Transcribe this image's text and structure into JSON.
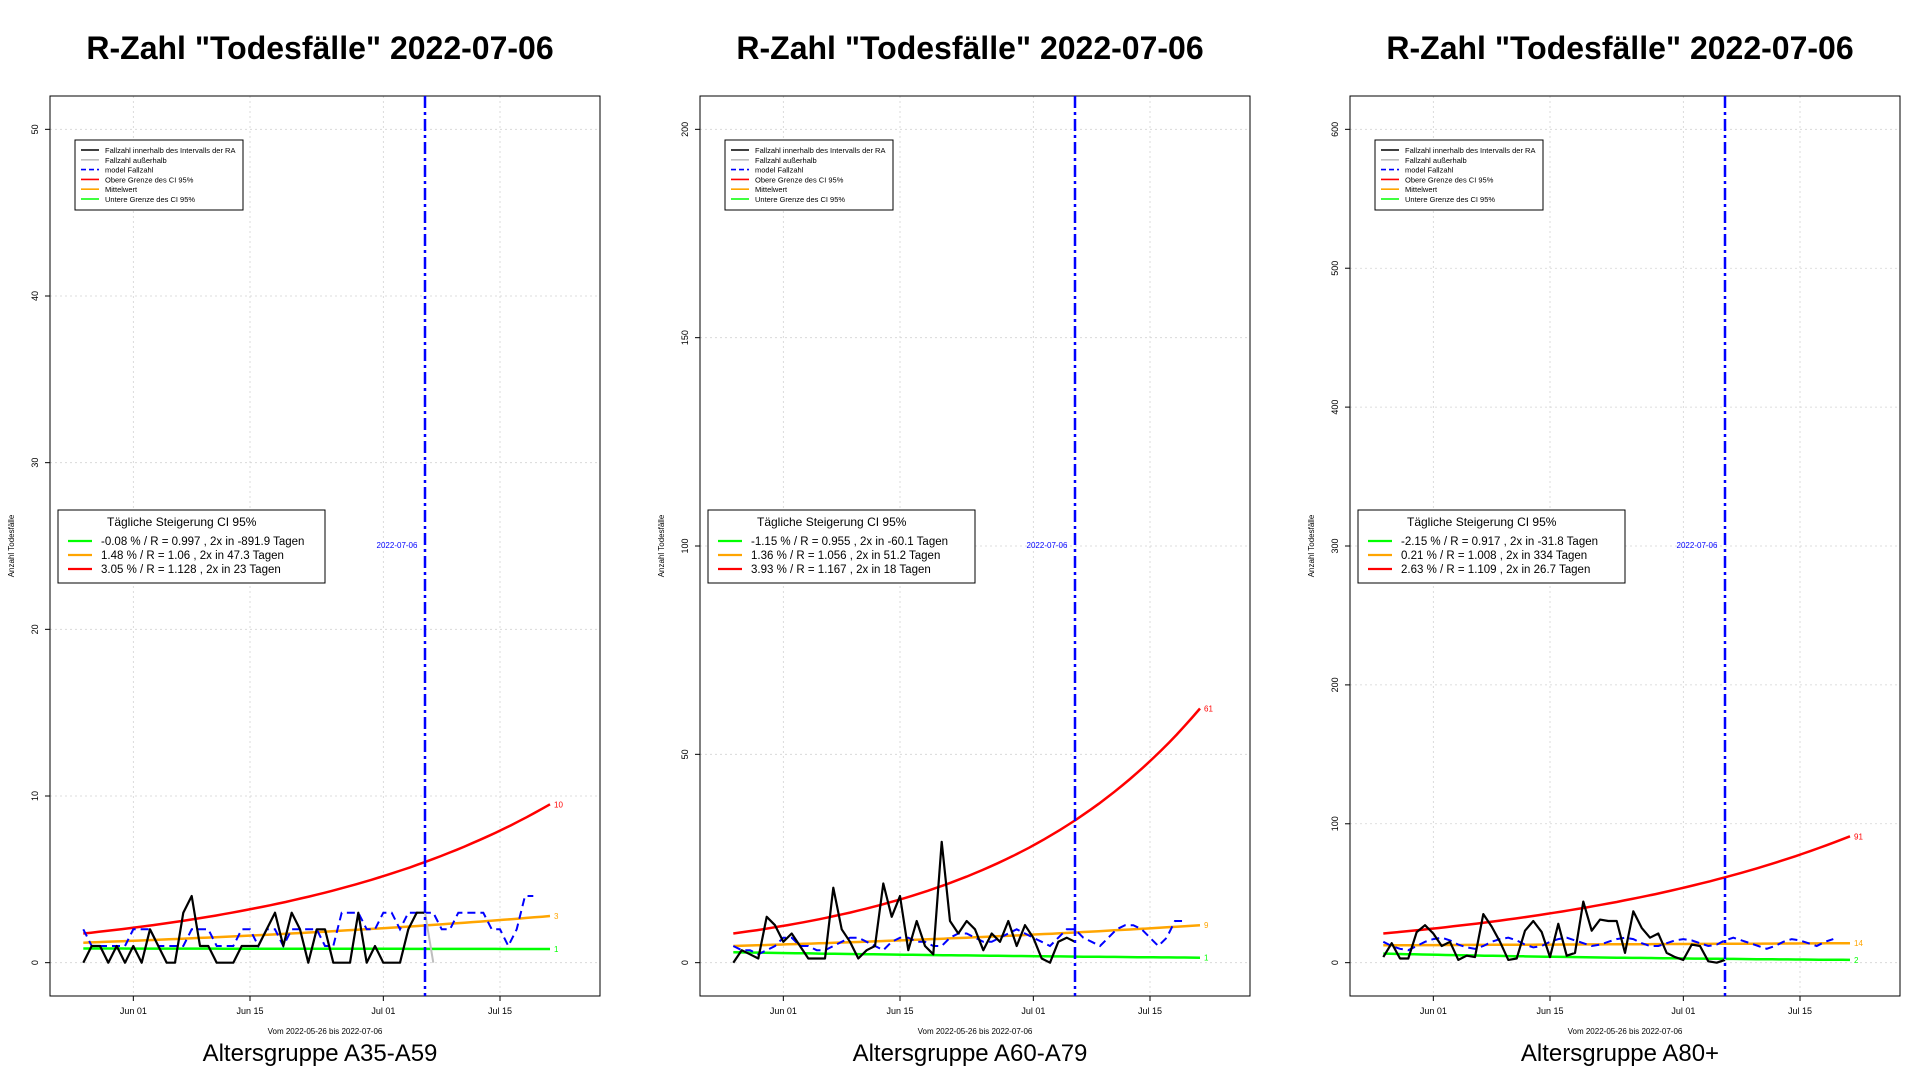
{
  "colors": {
    "inside": "#000000",
    "outside": "#bebebe",
    "model": "#0000ff",
    "upper": "#ff0000",
    "mean": "#ffa500",
    "lower": "#00ff00",
    "grid": "#d3d3d3"
  },
  "legend_labels": [
    {
      "label": "Fallzahl innerhalb des Intervalls der RA",
      "series": "inside"
    },
    {
      "label": "Fallzahl außerhalb",
      "series": "outside"
    },
    {
      "label": "model Fallzahl",
      "series": "model"
    },
    {
      "label": "Obere Grenze des CI 95%",
      "series": "upper"
    },
    {
      "label": "Mittelwert",
      "series": "mean"
    },
    {
      "label": "Untere Grenze des CI 95%",
      "series": "lower"
    }
  ],
  "chart_data": [
    {
      "type": "line",
      "title": "R-Zahl \"Todesfälle\" 2022-07-06",
      "subtitle": "Altersgruppe A35-A59",
      "xlabel": "Vom 2022-05-26 bis 2022-07-06",
      "ylabel": "Anzahl Todesfälle",
      "xlim": [
        "2022-05-22",
        "2022-07-27"
      ],
      "ylim": [
        -2,
        52
      ],
      "y_ticks": [
        0,
        10,
        20,
        30,
        40,
        50
      ],
      "x_ticks": [
        {
          "date": "2022-06-01",
          "label": "Jun 01"
        },
        {
          "date": "2022-06-15",
          "label": "Jun 15"
        },
        {
          "date": "2022-07-01",
          "label": "Jul 01"
        },
        {
          "date": "2022-07-15",
          "label": "Jul 15"
        }
      ],
      "vline": {
        "date": "2022-07-06",
        "label": "2022-07-06"
      },
      "grid": true,
      "legend_placement": "top-left",
      "start": "2022-05-26",
      "observed": [
        0,
        1,
        1,
        0,
        1,
        0,
        1,
        0,
        2,
        1,
        0,
        0,
        3,
        4,
        1,
        1,
        0,
        0,
        0,
        1,
        1,
        1,
        2,
        3,
        1,
        3,
        2,
        0,
        2,
        2,
        0,
        0,
        0,
        3,
        0,
        1,
        0,
        0,
        0,
        2,
        3,
        3
      ],
      "outside": [
        {
          "date": "2022-07-06",
          "value": 3
        },
        {
          "date": "2022-07-07",
          "value": 0
        }
      ],
      "model": [
        2,
        1,
        1,
        1,
        1,
        1,
        2,
        2,
        2,
        1,
        1,
        1,
        1,
        2,
        2,
        2,
        1,
        1,
        1,
        2,
        2,
        1,
        2,
        2,
        1,
        2,
        2,
        2,
        2,
        1,
        1,
        3,
        3,
        3,
        2,
        2,
        3,
        3,
        2,
        3,
        3,
        3,
        3,
        2,
        2,
        3,
        3,
        3,
        3,
        2,
        2,
        1,
        2,
        4,
        4
      ],
      "upper": {
        "start": 1.75,
        "end": 9.5,
        "label": "10"
      },
      "mean": {
        "start": 1.2,
        "end": 2.8,
        "label": "3"
      },
      "lower": {
        "start": 0.85,
        "end": 0.82,
        "label": "1"
      },
      "ci_box": {
        "title": "Tägliche Steigerung CI  95%",
        "lines": [
          {
            "text": "-0.08 % / R = 0.997 , 2x in -891.9 Tagen",
            "series": "lower"
          },
          {
            "text": "1.48 % / R = 1.06 , 2x in 47.3 Tagen",
            "series": "mean"
          },
          {
            "text": "3.05 % / R = 1.128 , 2x in 23 Tagen",
            "series": "upper"
          }
        ]
      }
    },
    {
      "type": "line",
      "title": "R-Zahl \"Todesfälle\" 2022-07-06",
      "subtitle": "Altersgruppe A60-A79",
      "xlabel": "Vom 2022-05-26 bis 2022-07-06",
      "ylabel": "Anzahl Todesfälle",
      "xlim": [
        "2022-05-22",
        "2022-07-27"
      ],
      "ylim": [
        -8,
        208
      ],
      "y_ticks": [
        0,
        50,
        100,
        150,
        200
      ],
      "x_ticks": [
        {
          "date": "2022-06-01",
          "label": "Jun 01"
        },
        {
          "date": "2022-06-15",
          "label": "Jun 15"
        },
        {
          "date": "2022-07-01",
          "label": "Jul 01"
        },
        {
          "date": "2022-07-15",
          "label": "Jul 15"
        }
      ],
      "vline": {
        "date": "2022-07-06",
        "label": "2022-07-06"
      },
      "grid": true,
      "legend_placement": "top-left",
      "start": "2022-05-26",
      "observed": [
        0,
        3,
        2,
        1,
        11,
        9,
        5,
        7,
        4,
        1,
        1,
        1,
        18,
        8,
        5,
        1,
        3,
        4,
        19,
        11,
        16,
        3,
        10,
        4,
        2,
        29,
        10,
        7,
        10,
        8,
        3,
        7,
        5,
        10,
        4,
        9,
        6,
        1,
        0,
        5,
        6,
        5
      ],
      "outside": [
        {
          "date": "2022-07-06",
          "value": 5
        }
      ],
      "model": [
        4,
        3,
        3,
        2,
        3,
        4,
        6,
        6,
        4,
        4,
        3,
        3,
        4,
        5,
        6,
        6,
        5,
        4,
        3,
        5,
        6,
        6,
        5,
        5,
        4,
        4,
        6,
        7,
        7,
        6,
        5,
        5,
        6,
        7,
        8,
        7,
        6,
        5,
        4,
        6,
        8,
        8,
        6,
        5,
        4,
        6,
        8,
        9,
        9,
        8,
        6,
        4,
        6,
        10,
        10
      ],
      "upper": {
        "start": 7,
        "end": 61,
        "label": "61"
      },
      "mean": {
        "start": 4,
        "end": 9,
        "label": "9"
      },
      "lower": {
        "start": 2.5,
        "end": 1.2,
        "label": "1"
      },
      "ci_box": {
        "title": "Tägliche Steigerung CI  95%",
        "lines": [
          {
            "text": "-1.15 % / R = 0.955 , 2x in -60.1 Tagen",
            "series": "lower"
          },
          {
            "text": "1.36 % / R = 1.056 , 2x in 51.2 Tagen",
            "series": "mean"
          },
          {
            "text": "3.93 % / R = 1.167 , 2x in 18 Tagen",
            "series": "upper"
          }
        ]
      }
    },
    {
      "type": "line",
      "title": "R-Zahl \"Todesfälle\" 2022-07-06",
      "subtitle": "Altersgruppe A80+",
      "xlabel": "Vom 2022-05-26 bis 2022-07-06",
      "ylabel": "Anzahl Todesfälle",
      "xlim": [
        "2022-05-22",
        "2022-07-27"
      ],
      "ylim": [
        -24,
        624
      ],
      "y_ticks": [
        0,
        100,
        200,
        300,
        400,
        500,
        600
      ],
      "x_ticks": [
        {
          "date": "2022-06-01",
          "label": "Jun 01"
        },
        {
          "date": "2022-06-15",
          "label": "Jun 15"
        },
        {
          "date": "2022-07-01",
          "label": "Jul 01"
        },
        {
          "date": "2022-07-15",
          "label": "Jul 15"
        }
      ],
      "vline": {
        "date": "2022-07-06",
        "label": "2022-07-06"
      },
      "grid": true,
      "legend_placement": "top-left",
      "start": "2022-05-26",
      "observed": [
        4,
        14,
        3,
        3,
        22,
        27,
        21,
        12,
        15,
        2,
        5,
        4,
        35,
        26,
        15,
        2,
        3,
        23,
        30,
        22,
        4,
        28,
        5,
        7,
        44,
        23,
        31,
        30,
        30,
        7,
        37,
        25,
        18,
        21,
        7,
        4,
        2,
        13,
        12,
        1,
        0,
        2
      ],
      "outside": [
        {
          "date": "2022-07-06",
          "value": 10
        }
      ],
      "model": [
        15,
        12,
        10,
        9,
        12,
        15,
        17,
        18,
        16,
        13,
        11,
        10,
        12,
        15,
        17,
        18,
        16,
        13,
        11,
        12,
        15,
        17,
        18,
        16,
        14,
        12,
        13,
        15,
        17,
        18,
        17,
        14,
        12,
        12,
        14,
        16,
        17,
        16,
        14,
        12,
        13,
        16,
        18,
        16,
        14,
        12,
        10,
        12,
        15,
        17,
        16,
        14,
        12,
        15,
        17
      ],
      "upper": {
        "start": 21,
        "end": 91,
        "label": "91"
      },
      "mean": {
        "start": 12.5,
        "end": 14,
        "label": "14"
      },
      "lower": {
        "start": 6.5,
        "end": 2,
        "label": "2"
      },
      "ci_box": {
        "title": "Tägliche Steigerung CI  95%",
        "lines": [
          {
            "text": "-2.15 % / R = 0.917 , 2x in -31.8 Tagen",
            "series": "lower"
          },
          {
            "text": "0.21 % / R = 1.008 , 2x in 334 Tagen",
            "series": "mean"
          },
          {
            "text": "2.63 % / R = 1.109 , 2x in 26.7 Tagen",
            "series": "upper"
          }
        ]
      }
    }
  ]
}
